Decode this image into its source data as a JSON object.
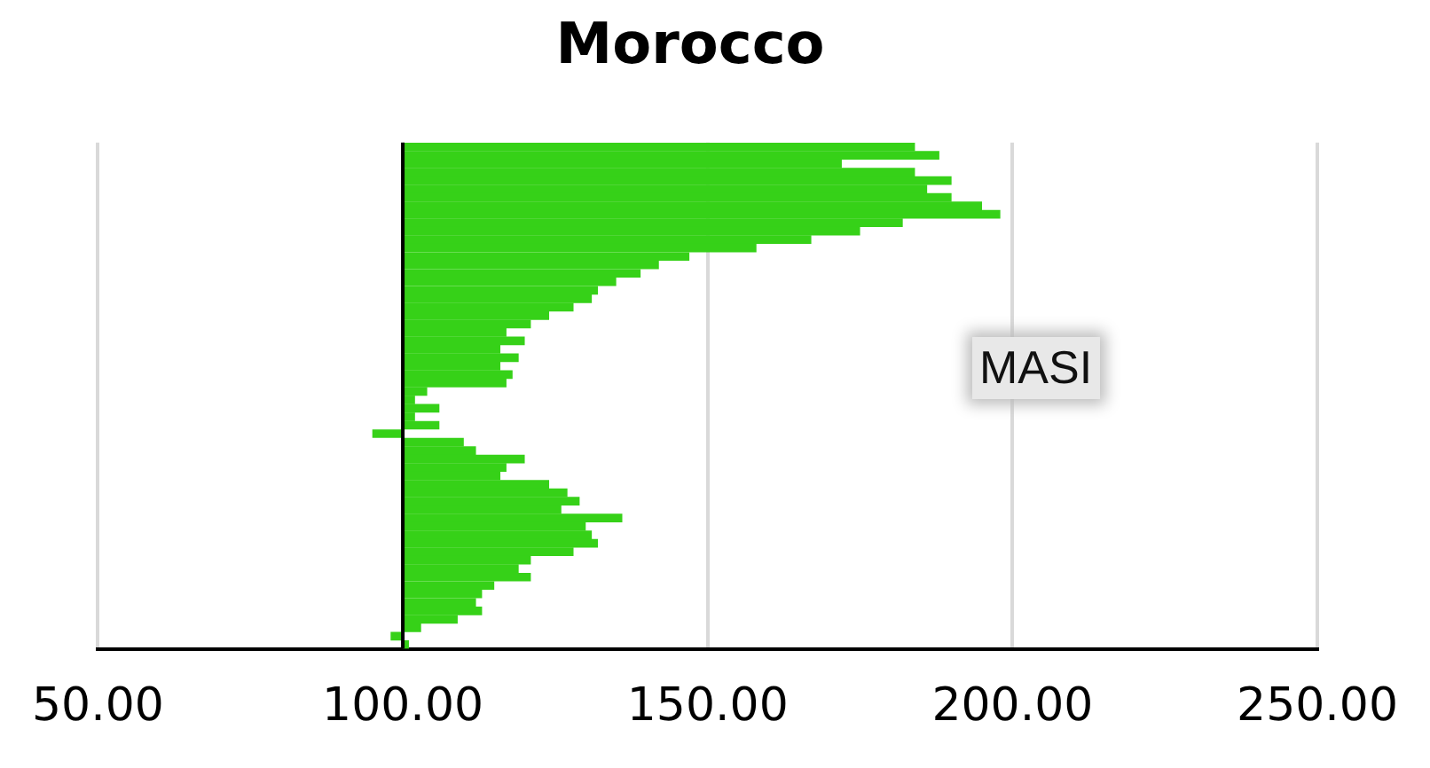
{
  "chart_data": {
    "type": "bar",
    "orientation": "horizontal",
    "title": "Morocco",
    "categories": [
      null,
      null,
      null,
      null,
      null,
      null,
      null,
      null,
      null,
      null,
      null,
      null,
      null,
      null,
      null,
      null,
      null,
      null,
      null,
      null,
      null,
      null,
      null,
      null,
      null,
      null,
      null,
      null,
      null,
      null,
      null,
      null,
      null,
      null,
      null,
      null,
      null,
      null,
      null,
      null,
      null,
      null,
      null,
      null,
      null,
      null,
      null,
      null,
      null,
      null,
      null,
      null,
      null,
      null,
      null,
      null,
      null,
      null,
      null,
      null
    ],
    "values": [
      84,
      88,
      72,
      84,
      90,
      86,
      90,
      95,
      98,
      82,
      75,
      67,
      58,
      47,
      42,
      39,
      35,
      32,
      31,
      28,
      24,
      21,
      17,
      20,
      16,
      19,
      16,
      18,
      17,
      4,
      2,
      6,
      2,
      6,
      -5,
      10,
      12,
      20,
      17,
      16,
      24,
      27,
      29,
      26,
      36,
      30,
      31,
      32,
      28,
      21,
      19,
      21,
      15,
      13,
      12,
      13,
      9,
      3,
      -2,
      1
    ],
    "base": [
      100,
      100,
      100,
      100,
      100,
      100,
      100,
      100,
      100,
      100,
      100,
      100,
      100,
      100,
      100,
      100,
      100,
      100,
      100,
      100,
      100,
      100,
      100,
      100,
      100,
      100,
      100,
      100,
      100,
      100,
      100,
      100,
      100,
      100,
      100,
      100,
      100,
      100,
      100,
      100,
      100,
      100,
      100,
      100,
      100,
      100,
      100,
      100,
      100,
      100,
      100,
      100,
      100,
      100,
      100,
      100,
      100,
      100,
      100,
      100
    ],
    "color": "#36d118",
    "xlim": [
      50,
      250
    ],
    "xticks": [
      {
        "value": 50,
        "label": "50.00"
      },
      {
        "value": 100,
        "label": "100.00"
      },
      {
        "value": 150,
        "label": "150.00"
      },
      {
        "value": 200,
        "label": "200.00"
      },
      {
        "value": 250,
        "label": "250.00"
      }
    ],
    "ref_lines": [
      {
        "axis": "x",
        "value": 100,
        "color": "#000000"
      }
    ],
    "grid": "x",
    "tick_labels": "x",
    "legend": false,
    "annotations": [
      "MASI"
    ]
  }
}
